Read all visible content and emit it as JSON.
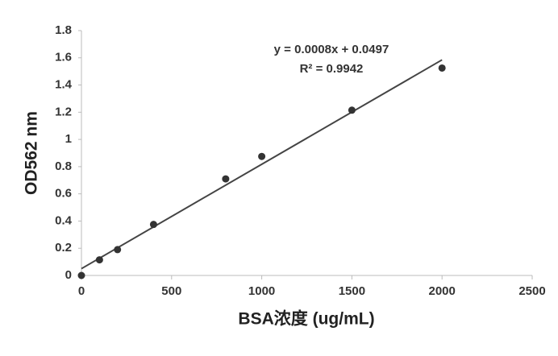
{
  "chart_data": {
    "type": "scatter",
    "x_label": "BSA浓度 (ug/mL)",
    "y_label": "OD562 nm",
    "x": [
      0,
      100,
      200,
      400,
      800,
      1000,
      1500,
      2000
    ],
    "values": [
      0.0,
      0.115,
      0.19,
      0.375,
      0.71,
      0.875,
      1.215,
      1.525
    ],
    "color": "#333333",
    "trendline": {
      "x": [
        0,
        2000
      ],
      "values": [
        0.05,
        1.585
      ],
      "color": "#444444"
    },
    "annotations": [
      "y = 0.0008x + 0.0497",
      "R² = 0.9942"
    ],
    "xlim": [
      0,
      2500
    ],
    "xticks": [
      0,
      500,
      1000,
      1500,
      2000,
      2500
    ],
    "ylim": [
      0,
      1.8
    ],
    "yticks": [
      0,
      0.2,
      0.4,
      0.6,
      0.8,
      1,
      1.2,
      1.4,
      1.6,
      1.8
    ],
    "grid": false
  }
}
